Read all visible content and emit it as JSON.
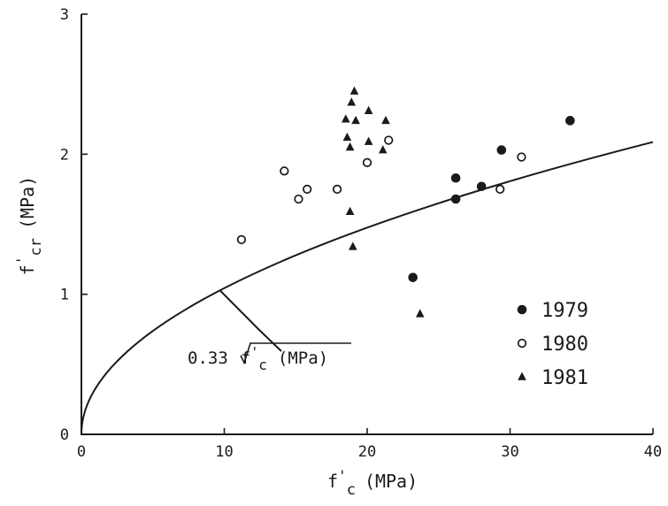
{
  "chart_data": {
    "type": "scatter",
    "xlabel": {
      "main": "f",
      "prime": "'",
      "sub": "c",
      "unit": "(MPa)"
    },
    "ylabel": {
      "main": "f",
      "prime": "'",
      "sub": "cr",
      "unit": "(MPa)"
    },
    "xlim": [
      0,
      40
    ],
    "ylim": [
      0,
      3
    ],
    "x_ticks": [
      0,
      10,
      20,
      30,
      40
    ],
    "y_ticks": [
      0,
      1,
      2,
      3
    ],
    "x_tick_labels": [
      "0",
      "10",
      "20",
      "30",
      "40"
    ],
    "y_tick_labels": [
      "0",
      "1",
      "2",
      "3"
    ],
    "grid": false,
    "legend_position": "bottom-right",
    "curve": {
      "formula_coefficient": 0.33,
      "label": {
        "coef": "0.33",
        "main": "f",
        "prime": "'",
        "sub": "c",
        "unit": "(MPa)"
      },
      "annotated_at_x": 9.7
    },
    "series": [
      {
        "name": "1979",
        "marker": "filled-circle",
        "points": [
          [
            23.2,
            1.12
          ],
          [
            26.2,
            1.83
          ],
          [
            26.2,
            1.68
          ],
          [
            28,
            1.77
          ],
          [
            29.4,
            2.03
          ],
          [
            34.2,
            2.24
          ]
        ]
      },
      {
        "name": "1980",
        "marker": "open-circle",
        "points": [
          [
            11.2,
            1.39
          ],
          [
            14.2,
            1.88
          ],
          [
            15.2,
            1.68
          ],
          [
            15.8,
            1.75
          ],
          [
            17.9,
            1.75
          ],
          [
            20,
            1.94
          ],
          [
            21.5,
            2.1
          ],
          [
            29.3,
            1.75
          ],
          [
            30.8,
            1.98
          ]
        ]
      },
      {
        "name": "1981",
        "marker": "triangle",
        "points": [
          [
            19.1,
            2.45
          ],
          [
            18.9,
            2.37
          ],
          [
            20.1,
            2.31
          ],
          [
            18.5,
            2.25
          ],
          [
            19.2,
            2.24
          ],
          [
            21.3,
            2.24
          ],
          [
            18.6,
            2.12
          ],
          [
            20.1,
            2.09
          ],
          [
            18.8,
            2.05
          ],
          [
            21.1,
            2.03
          ],
          [
            18.8,
            1.59
          ],
          [
            19,
            1.34
          ],
          [
            23.7,
            0.86
          ]
        ]
      }
    ]
  }
}
